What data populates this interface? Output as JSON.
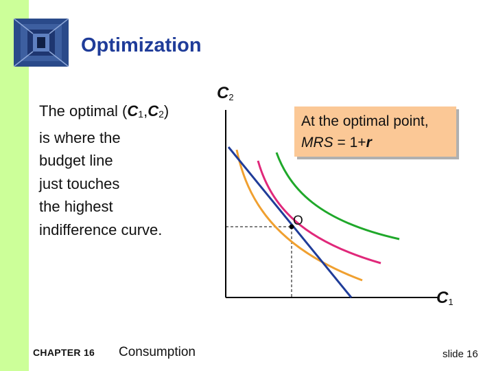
{
  "slide": {
    "title": "Optimization",
    "body": {
      "line1_pre": "The optimal (",
      "c1_var": "C",
      "c1_sub": "1",
      "comma": ",",
      "c2_var": "C",
      "c2_sub": "2",
      "line1_post": ")",
      "lines": [
        "is where the",
        "budget line",
        "just touches",
        "the highest",
        "indifference curve."
      ]
    },
    "callout": {
      "line1": "At the optimal point,",
      "mrs": "MRS",
      "eq": " = 1+",
      "r": "r"
    },
    "graph": {
      "y_axis_var": "C",
      "y_axis_sub": "2",
      "x_axis_var": "C",
      "x_axis_sub": "1",
      "point_label": "O"
    },
    "footer": {
      "chapter": "CHAPTER 16",
      "topic": "Consumption",
      "slide_number": "slide 16"
    },
    "colors": {
      "band": "#ccff99",
      "title": "#1f3c99",
      "callout_fill": "#fbc896",
      "budget_line": "#1f3c99",
      "curve_low": "#f0a030",
      "curve_mid": "#e0287a",
      "curve_high": "#1fa82a"
    }
  }
}
